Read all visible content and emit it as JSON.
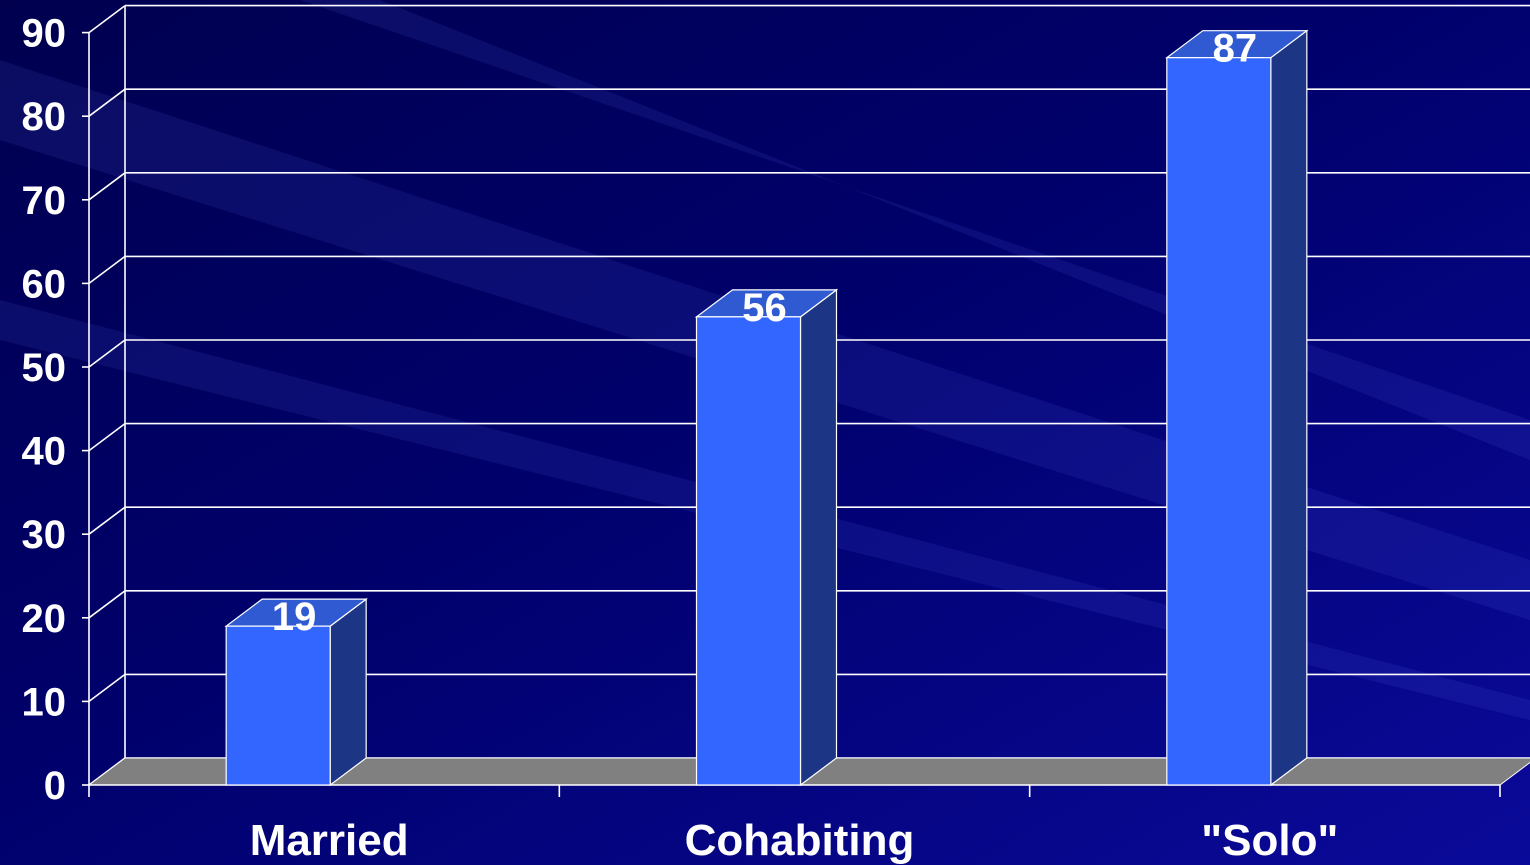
{
  "chart_data": {
    "type": "bar",
    "categories": [
      "Married",
      "Cohabiting",
      "\"Solo\""
    ],
    "values": [
      19,
      56,
      87
    ],
    "data_labels": [
      "19",
      "56",
      "87"
    ],
    "yticks": [
      "0",
      "10",
      "20",
      "30",
      "40",
      "50",
      "60",
      "70",
      "80",
      "90"
    ],
    "ylim": [
      0,
      90
    ],
    "title": "",
    "xlabel": "",
    "ylabel": "",
    "grid": true,
    "style": "3d-column"
  },
  "colors": {
    "background": "#00007a",
    "bar_front": "#3366ff",
    "bar_side": "#1d3585",
    "bar_top": "#2f5ad2",
    "floor": "#808080",
    "gridline": "#ffffff",
    "text": "#ffffff"
  }
}
